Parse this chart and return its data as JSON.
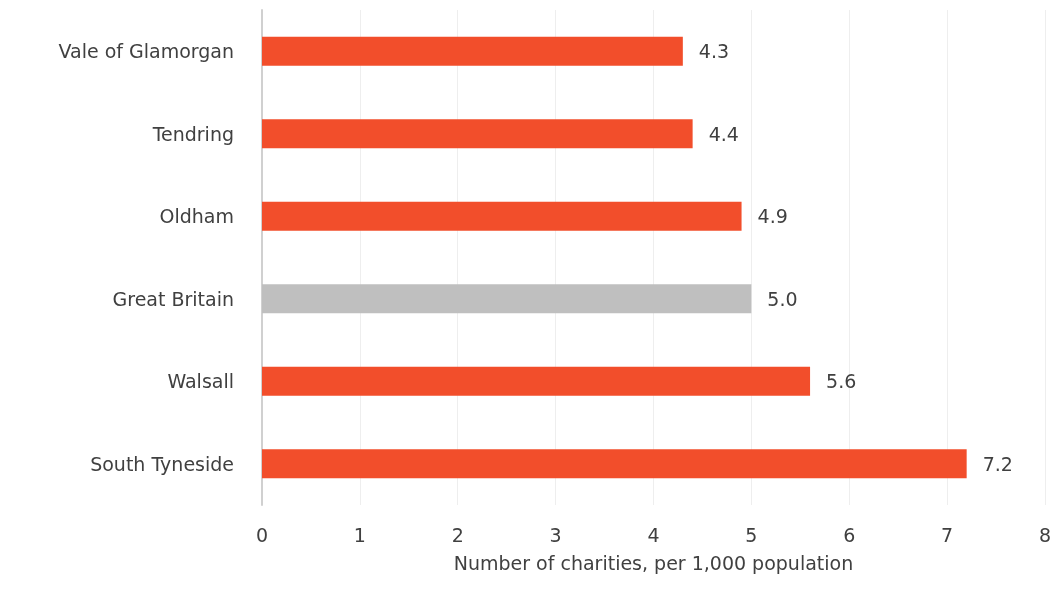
{
  "chart_data": {
    "type": "bar",
    "orientation": "horizontal",
    "xlabel": "Number of charities, per 1,000 population",
    "categories": [
      "Vale of Glamorgan",
      "Tendring",
      "Oldham",
      "Great Britain",
      "Walsall",
      "South Tyneside"
    ],
    "values": [
      4.3,
      4.4,
      4.9,
      5.0,
      5.6,
      7.2
    ],
    "colors": [
      "#f24e2b",
      "#f24e2b",
      "#f24e2b",
      "#bfbfbf",
      "#f24e2b",
      "#f24e2b"
    ],
    "value_labels": [
      "4.3",
      "4.4",
      "4.9",
      "5.0",
      "5.6",
      "7.2"
    ],
    "xlim": [
      0,
      8
    ],
    "xticks": [
      0,
      1,
      2,
      3,
      4,
      5,
      6,
      7,
      8
    ],
    "grid": "x"
  }
}
